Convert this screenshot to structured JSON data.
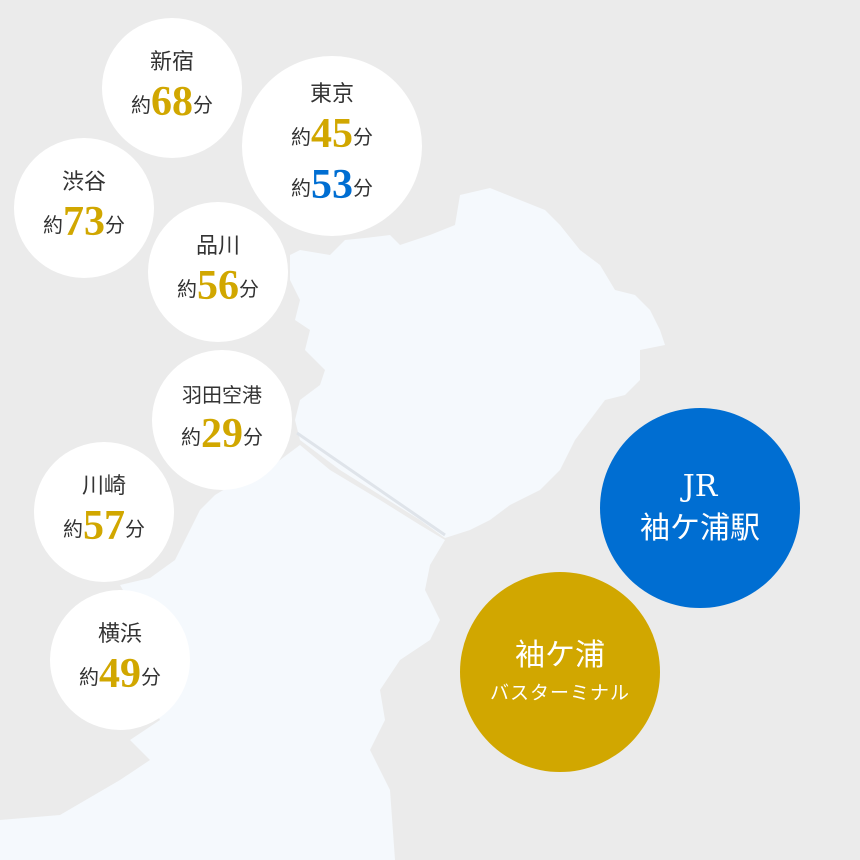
{
  "colors": {
    "background": "#ebebeb",
    "land": "#f5f9fd",
    "gold": "#d1a700",
    "blue": "#006ed2",
    "circle": "#ffffff"
  },
  "destinations": [
    {
      "name": "新宿",
      "prefix": "約",
      "minutes": "68",
      "unit": "分"
    },
    {
      "name": "東京",
      "prefix": "約",
      "minutes": "45",
      "unit": "分",
      "alt_prefix": "約",
      "alt_minutes": "53",
      "alt_unit": "分"
    },
    {
      "name": "渋谷",
      "prefix": "約",
      "minutes": "73",
      "unit": "分"
    },
    {
      "name": "品川",
      "prefix": "約",
      "minutes": "56",
      "unit": "分"
    },
    {
      "name": "羽田空港",
      "prefix": "約",
      "minutes": "29",
      "unit": "分"
    },
    {
      "name": "川崎",
      "prefix": "約",
      "minutes": "57",
      "unit": "分"
    },
    {
      "name": "横浜",
      "prefix": "約",
      "minutes": "49",
      "unit": "分"
    }
  ],
  "origins": {
    "station": {
      "line1": "JR",
      "line2": "袖ケ浦駅"
    },
    "bus": {
      "line1": "袖ケ浦",
      "line2": "バスターミナル"
    }
  }
}
